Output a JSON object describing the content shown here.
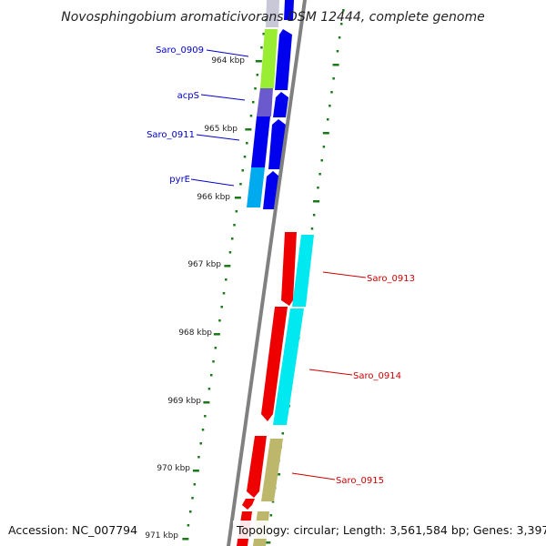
{
  "title": "Novosphingobium aromaticivorans DSM 12444, complete genome",
  "accession": "Accession: NC_007794",
  "topology": "Topology: circular; Length: 3,561,584 bp; Genes: 3,397",
  "tick_labels": [
    "964 kbp",
    "965 kbp",
    "966 kbp",
    "967 kbp",
    "968 kbp",
    "969 kbp",
    "970 kbp",
    "971 kbp"
  ],
  "colors": {
    "backbone": "#808080",
    "tick": "#1a7a1a",
    "forward_label": "#0000cc",
    "reverse_label": "#cc0000",
    "blue": "#0000ee",
    "red": "#ee0000",
    "cyan": "#00e8f0",
    "lime": "#99ee33",
    "slate": "#6a5acd",
    "skyblue": "#00aaee",
    "khaki": "#bdb76b"
  },
  "gene_labels": [
    {
      "name": "Saro_0909",
      "strand": "forward"
    },
    {
      "name": "acpS",
      "strand": "forward"
    },
    {
      "name": "Saro_0911",
      "strand": "forward"
    },
    {
      "name": "pyrE",
      "strand": "forward"
    },
    {
      "name": "Saro_0913",
      "strand": "reverse"
    },
    {
      "name": "Saro_0914",
      "strand": "reverse"
    },
    {
      "name": "Saro_0915",
      "strand": "reverse"
    }
  ],
  "features": [
    {
      "name": "Saro_0909",
      "track": "cds",
      "strand": "forward",
      "color": "blue"
    },
    {
      "name": "Saro_0909",
      "track": "category",
      "color": "lime"
    },
    {
      "name": "acpS",
      "track": "cds",
      "strand": "forward",
      "color": "blue"
    },
    {
      "name": "acpS",
      "track": "category",
      "color": "slate"
    },
    {
      "name": "Saro_0911",
      "track": "cds",
      "strand": "forward",
      "color": "blue"
    },
    {
      "name": "Saro_0911",
      "track": "category",
      "color": "blue"
    },
    {
      "name": "pyrE",
      "track": "cds",
      "strand": "forward",
      "color": "blue"
    },
    {
      "name": "pyrE",
      "track": "category",
      "color": "skyblue"
    },
    {
      "name": "Saro_0913",
      "track": "cds",
      "strand": "reverse",
      "color": "red"
    },
    {
      "name": "Saro_0913",
      "track": "category",
      "color": "cyan"
    },
    {
      "name": "Saro_0914",
      "track": "cds",
      "strand": "reverse",
      "color": "red"
    },
    {
      "name": "Saro_0914",
      "track": "category",
      "color": "cyan"
    },
    {
      "name": "Saro_0915",
      "track": "cds",
      "strand": "reverse",
      "color": "red"
    },
    {
      "name": "Saro_0915",
      "track": "category",
      "color": "khaki"
    }
  ]
}
